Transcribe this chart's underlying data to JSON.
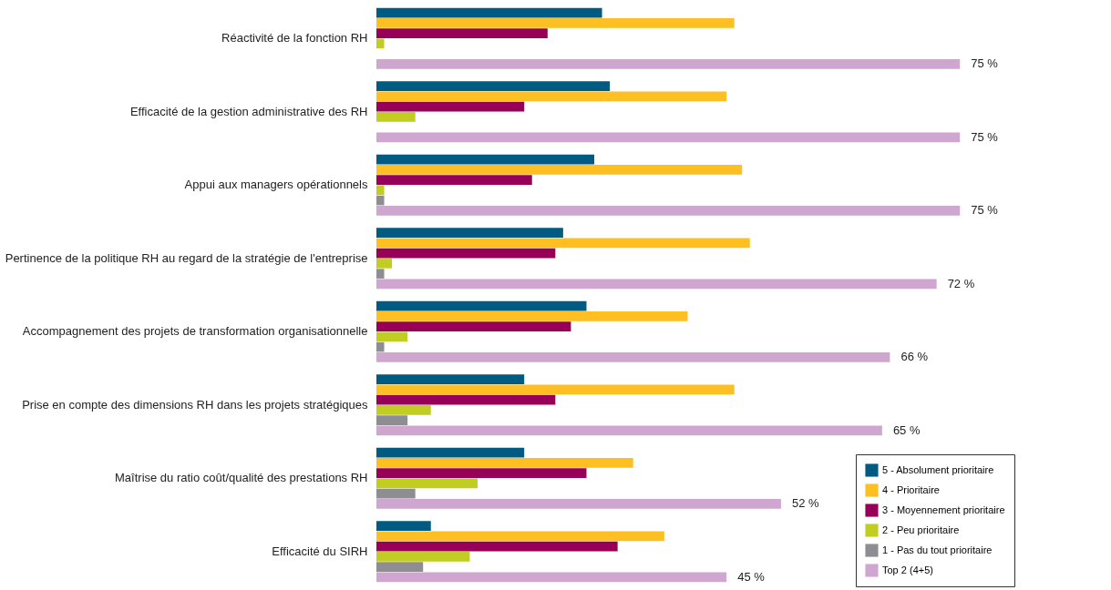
{
  "chart_data": {
    "type": "bar",
    "orientation": "horizontal",
    "legend": "bottom right",
    "tick_labels": "y",
    "xlim": [
      0,
      82
    ],
    "categories": [
      "Réactivité de la fonction RH",
      "Efficacité de la gestion administrative des RH",
      "Appui aux managers opérationnels",
      "Pertinence de la politique RH au regard de la stratégie de l'entreprise",
      "Accompagnement des projets de transformation organisationnelle",
      "Prise en compte des dimensions RH dans les projets stratégiques",
      "Maîtrise du ratio coût/qualité des prestations RH",
      "Efficacité du SIRH"
    ],
    "series": [
      {
        "name": "5 - Absolument prioritaire",
        "color": "#005a82",
        "values": [
          29,
          30,
          28,
          24,
          27,
          19,
          19,
          7
        ]
      },
      {
        "name": "4 - Prioritaire",
        "color": "#fdbf22",
        "values": [
          46,
          45,
          47,
          48,
          40,
          46,
          33,
          37
        ]
      },
      {
        "name": "3 - Moyennement prioritaire",
        "color": "#960056",
        "values": [
          22,
          19,
          20,
          23,
          25,
          23,
          27,
          31
        ]
      },
      {
        "name": "2 - Peu prioritaire",
        "color": "#c1cd22",
        "values": [
          1,
          5,
          1,
          2,
          4,
          7,
          13,
          12
        ]
      },
      {
        "name": "1 - Pas du tout prioritaire",
        "color": "#8e8e92",
        "values": [
          0,
          0,
          1,
          1,
          1,
          4,
          5,
          6
        ]
      },
      {
        "name": "Top 2 (4+5)",
        "color": "#cea6cf",
        "values": [
          75,
          75,
          75,
          72,
          66,
          65,
          52,
          45
        ],
        "value_labels": [
          "75 %",
          "75 %",
          "75 %",
          "72 %",
          "66 %",
          "65 %",
          "52 %",
          "45 %"
        ]
      }
    ]
  }
}
